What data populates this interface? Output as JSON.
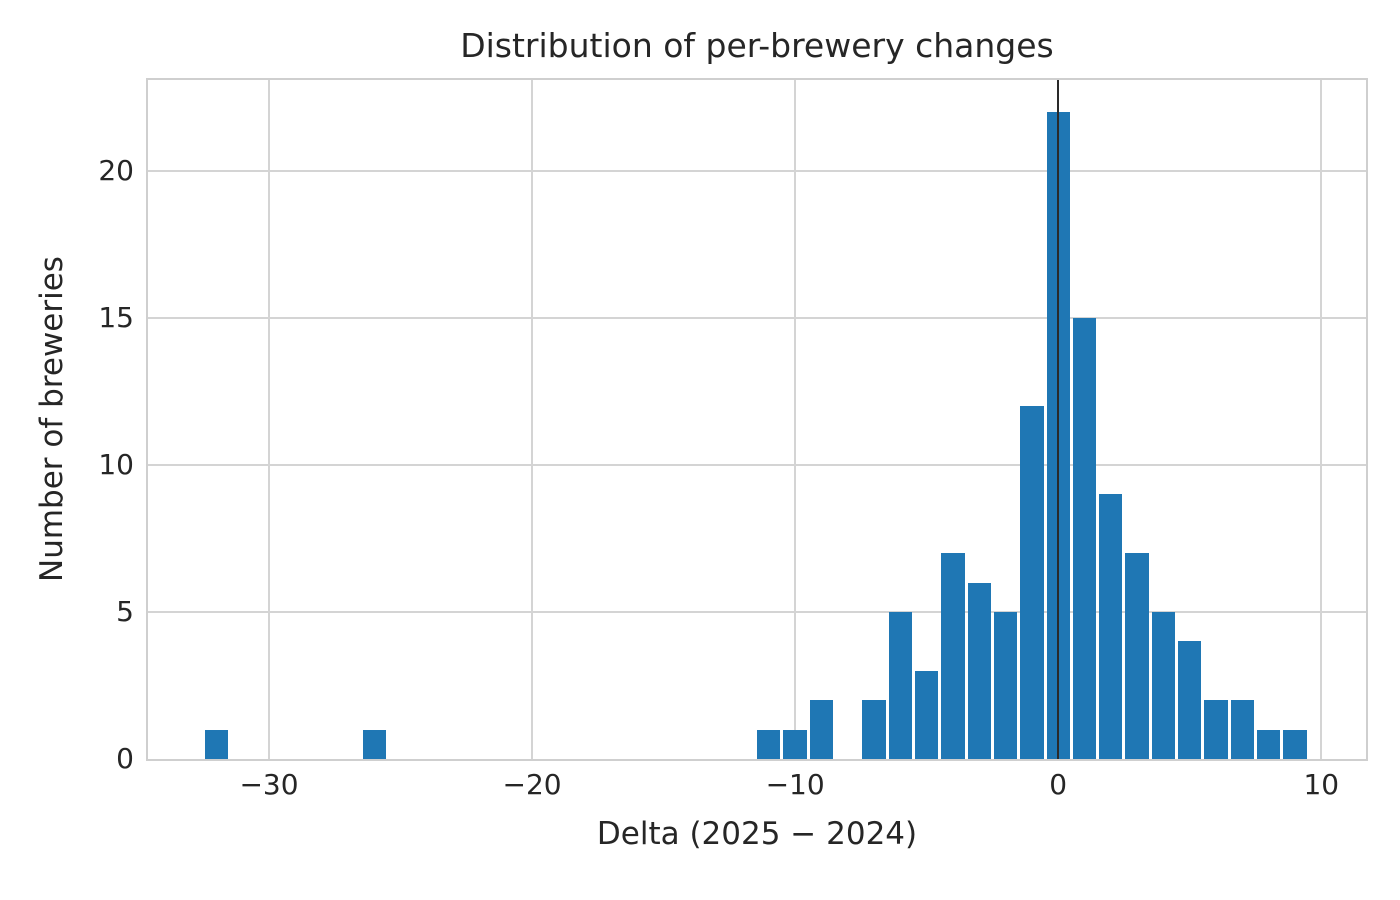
{
  "chart_data": {
    "type": "bar",
    "subtype": "histogram",
    "title": "Distribution of per-brewery changes",
    "xlabel": "Delta (2025 − 2024)",
    "ylabel": "Number of breweries",
    "x": [
      -32,
      -26,
      -11,
      -10,
      -9,
      -7,
      -6,
      -5,
      -4,
      -3,
      -2,
      -1,
      0,
      1,
      2,
      3,
      4,
      5,
      6,
      7,
      8,
      9
    ],
    "values": [
      1,
      1,
      1,
      1,
      2,
      2,
      5,
      3,
      7,
      6,
      5,
      12,
      22,
      15,
      9,
      7,
      5,
      4,
      2,
      2,
      1,
      1
    ],
    "bin_width": 1,
    "xlim": [
      -34.6,
      11.7
    ],
    "ylim": [
      0,
      23.1
    ],
    "xticks": [
      -30,
      -20,
      -10,
      0,
      10
    ],
    "xtick_labels": [
      "−30",
      "−20",
      "−10",
      "0",
      "10"
    ],
    "yticks": [
      0,
      5,
      10,
      15,
      20
    ],
    "ytick_labels": [
      "0",
      "5",
      "10",
      "15",
      "20"
    ],
    "grid": true,
    "legend": null,
    "vline_x": 0,
    "colors": {
      "bar": "#1f77b4",
      "grid": "#d4d4d4",
      "spine": "#cfcfcf",
      "vline": "#2a2a2a",
      "text": "#262626",
      "background": "#ffffff"
    }
  }
}
